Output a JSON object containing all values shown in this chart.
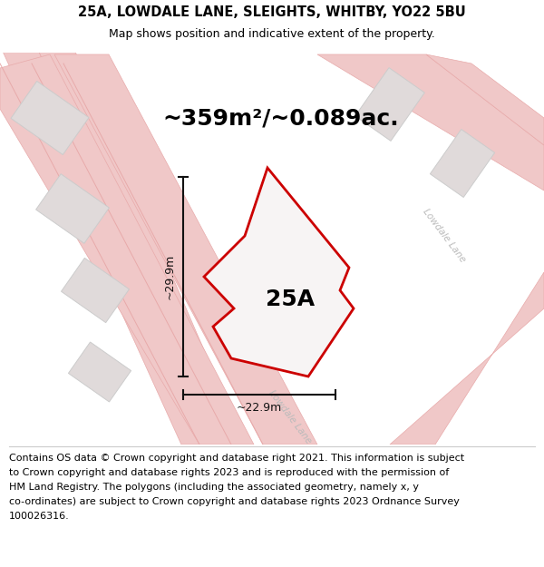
{
  "title_line1": "25A, LOWDALE LANE, SLEIGHTS, WHITBY, YO22 5BU",
  "title_line2": "Map shows position and indicative extent of the property.",
  "area_text": "~359m²/~0.089ac.",
  "label_25a": "25A",
  "dim_height": "~29.9m",
  "dim_width": "~22.9m",
  "footer_lines": [
    "Contains OS data © Crown copyright and database right 2021. This information is subject",
    "to Crown copyright and database rights 2023 and is reproduced with the permission of",
    "HM Land Registry. The polygons (including the associated geometry, namely x, y",
    "co-ordinates) are subject to Crown copyright and database rights 2023 Ordnance Survey",
    "100026316."
  ],
  "map_bg": "#f7f4f4",
  "plot_color": "#cc0000",
  "plot_fill": "#f7f4f4",
  "road_color": "#f0c8c8",
  "road_edge": "#e8aaaa",
  "building_color": "#e0dada",
  "building_edge": "#cccccc",
  "dim_color": "#111111",
  "road_label_color": "#bbbbbb",
  "title_fontsize": 10.5,
  "subtitle_fontsize": 9,
  "area_fontsize": 18,
  "label_fontsize": 18,
  "dim_fontsize": 9,
  "footer_fontsize": 8
}
